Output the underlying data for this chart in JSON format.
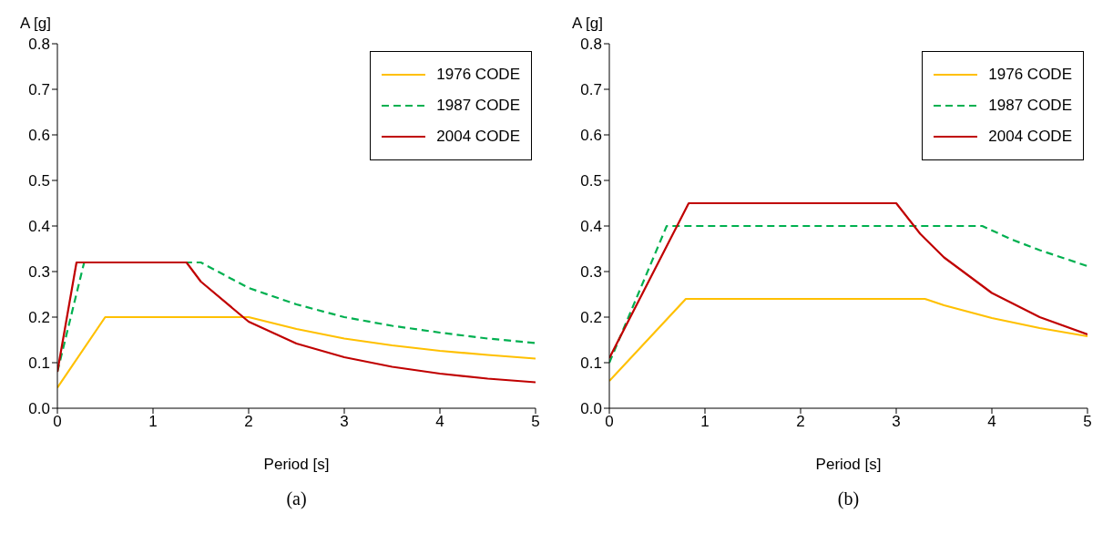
{
  "chart_data": [
    {
      "type": "line",
      "xlabel": "Period [s]",
      "ylabel": "A [g]",
      "annotations": [
        "(a)"
      ],
      "xlim": [
        0,
        5
      ],
      "xticks": [
        0,
        1,
        2,
        3,
        4,
        5
      ],
      "ylim": [
        0,
        0.8
      ],
      "yticks": [
        {
          "value": 0,
          "label": "0.0"
        },
        {
          "value": 0.1,
          "label": "0.1"
        },
        {
          "value": 0.2,
          "label": "0.2"
        },
        {
          "value": 0.3,
          "label": "0.3"
        },
        {
          "value": 0.4,
          "label": "0.4"
        },
        {
          "value": 0.5,
          "label": "0.5"
        },
        {
          "value": 0.6,
          "label": "0.6"
        },
        {
          "value": 0.7,
          "label": "0.7"
        },
        {
          "value": 0.8,
          "label": "0.8"
        }
      ],
      "grid": false,
      "legend": "top right",
      "marker": "none",
      "series": [
        {
          "name": "1976 CODE",
          "color": "#ffc000",
          "line_style": "solid",
          "x": [
            0,
            0.5,
            1,
            1.5,
            2,
            2.5,
            3,
            3.5,
            4,
            4.5,
            5
          ],
          "values": [
            0.045,
            0.2,
            0.2,
            0.2,
            0.2,
            0.174,
            0.153,
            0.138,
            0.126,
            0.117,
            0.109
          ]
        },
        {
          "name": "1987 CODE",
          "color": "#00b050",
          "line_style": "dashed",
          "x": [
            0,
            0.28,
            1.5,
            2,
            2.5,
            3,
            3.5,
            4,
            4.5,
            5
          ],
          "values": [
            0.08,
            0.32,
            0.32,
            0.264,
            0.228,
            0.2,
            0.181,
            0.166,
            0.153,
            0.143
          ]
        },
        {
          "name": "2004 CODE",
          "color": "#c00000",
          "line_style": "solid",
          "x": [
            0,
            0.2,
            1,
            1.35,
            1.5,
            2,
            2.5,
            3,
            3.5,
            4,
            4.5,
            5
          ],
          "values": [
            0.08,
            0.32,
            0.32,
            0.32,
            0.278,
            0.19,
            0.142,
            0.112,
            0.091,
            0.076,
            0.065,
            0.057
          ]
        }
      ]
    },
    {
      "type": "line",
      "xlabel": "Period [s]",
      "ylabel": "A [g]",
      "annotations": [
        "(b)"
      ],
      "xlim": [
        0,
        5
      ],
      "xticks": [
        0,
        1,
        2,
        3,
        4,
        5
      ],
      "ylim": [
        0,
        0.8
      ],
      "yticks": [
        {
          "value": 0,
          "label": "0.0"
        },
        {
          "value": 0.1,
          "label": "0.1"
        },
        {
          "value": 0.2,
          "label": "0.2"
        },
        {
          "value": 0.3,
          "label": "0.3"
        },
        {
          "value": 0.4,
          "label": "0.4"
        },
        {
          "value": 0.5,
          "label": "0.5"
        },
        {
          "value": 0.6,
          "label": "0.6"
        },
        {
          "value": 0.7,
          "label": "0.7"
        },
        {
          "value": 0.8,
          "label": "0.8"
        }
      ],
      "grid": false,
      "legend": "top right",
      "marker": "none",
      "series": [
        {
          "name": "1976 CODE",
          "color": "#ffc000",
          "line_style": "solid",
          "x": [
            0,
            0.8,
            2,
            3.3,
            3.5,
            4,
            4.5,
            5
          ],
          "values": [
            0.06,
            0.24,
            0.24,
            0.24,
            0.226,
            0.198,
            0.176,
            0.158
          ]
        },
        {
          "name": "1987 CODE",
          "color": "#00b050",
          "line_style": "dashed",
          "x": [
            0,
            0.6,
            2,
            3.9,
            4.2,
            4.5,
            5
          ],
          "values": [
            0.1,
            0.4,
            0.4,
            0.4,
            0.371,
            0.347,
            0.312
          ]
        },
        {
          "name": "2004 CODE",
          "color": "#c00000",
          "line_style": "solid",
          "x": [
            0,
            0.83,
            2,
            3,
            3.25,
            3.5,
            4,
            4.5,
            5
          ],
          "values": [
            0.11,
            0.45,
            0.45,
            0.45,
            0.383,
            0.331,
            0.253,
            0.2,
            0.162
          ]
        }
      ]
    }
  ]
}
